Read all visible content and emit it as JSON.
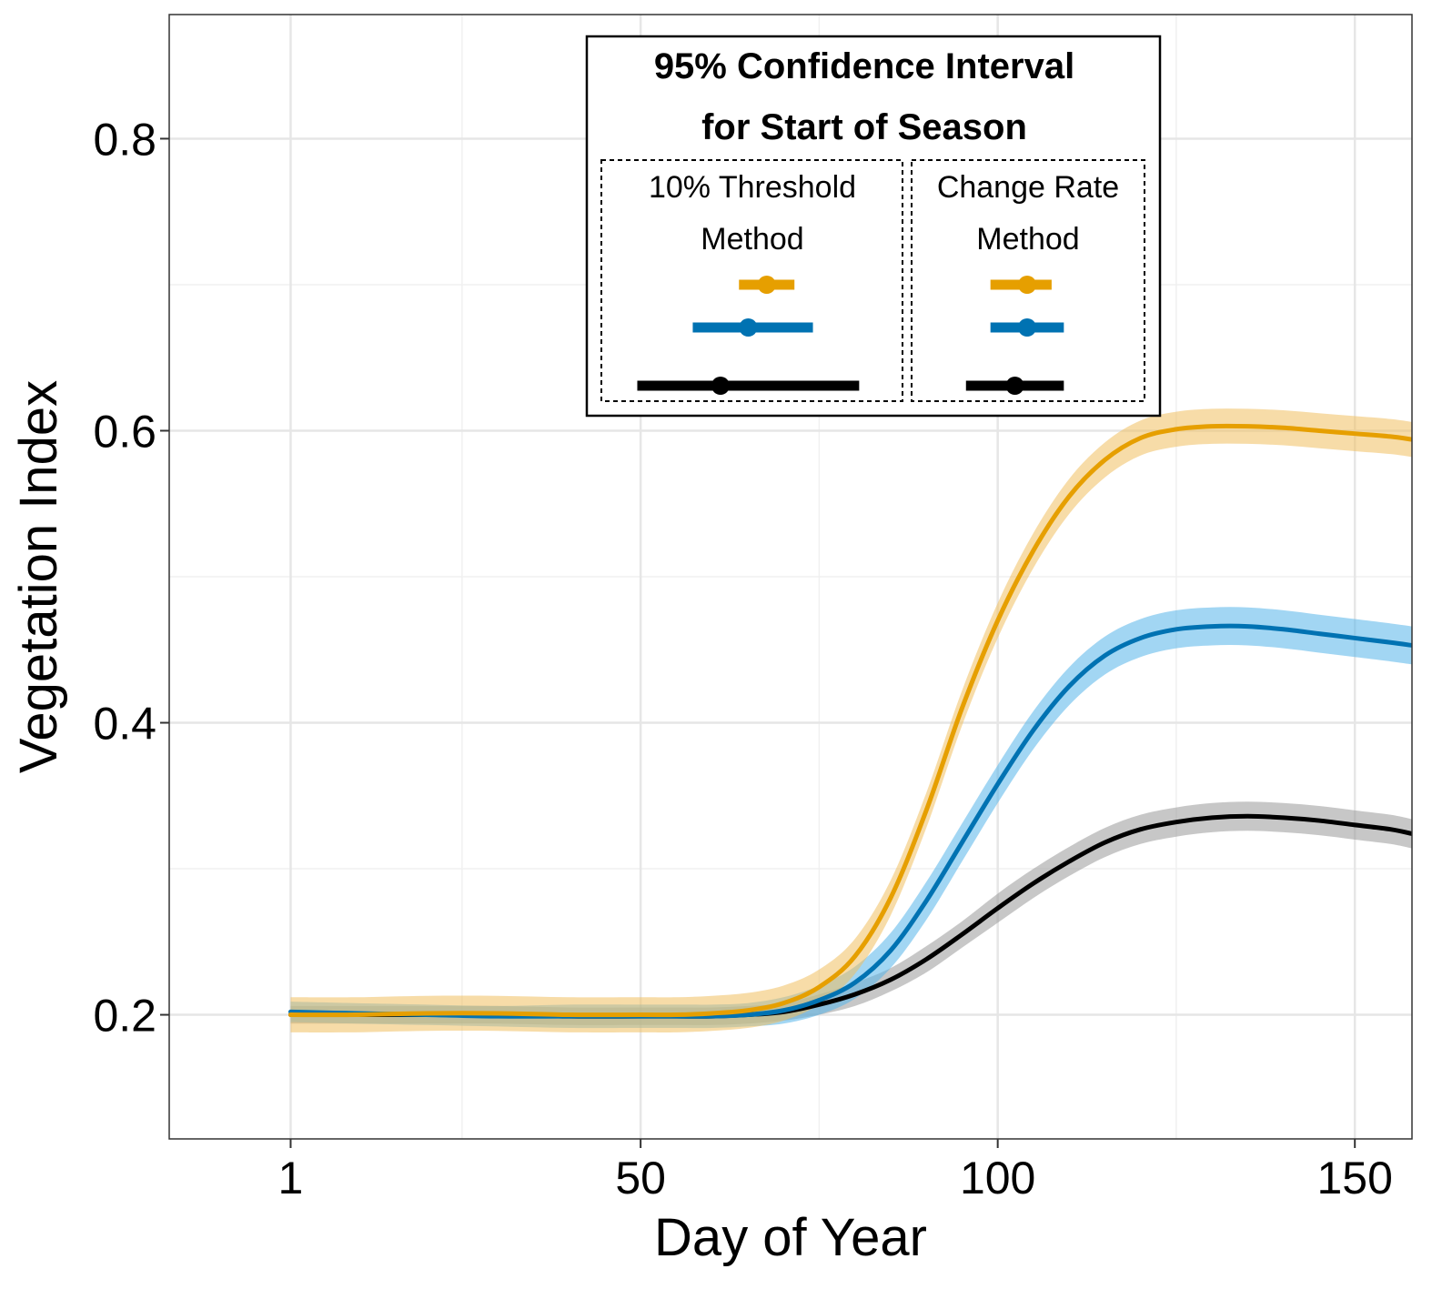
{
  "chart_data": {
    "type": "line",
    "xlabel": "Day of Year",
    "ylabel": "Vegetation Index",
    "xlim": [
      -16,
      158
    ],
    "ylim": [
      0.115,
      0.885
    ],
    "x_ticks": [
      1,
      50,
      100,
      150
    ],
    "x_minor": [
      25,
      75,
      125
    ],
    "y_ticks": [
      0.2,
      0.4,
      0.6,
      0.8
    ],
    "y_tick_labels": [
      "0.2",
      "0.4",
      "0.6",
      "0.8"
    ],
    "y_minor": [
      0.3,
      0.5,
      0.7
    ],
    "grid": true,
    "series": [
      {
        "color": "#000000",
        "band_color": "#999999",
        "x": [
          1,
          10,
          20,
          30,
          40,
          50,
          55,
          60,
          65,
          70,
          75,
          80,
          85,
          90,
          95,
          100,
          105,
          110,
          115,
          120,
          125,
          130,
          135,
          140,
          145,
          150,
          155,
          158
        ],
        "y": [
          0.2,
          0.2,
          0.2,
          0.2,
          0.199,
          0.199,
          0.199,
          0.199,
          0.2,
          0.202,
          0.207,
          0.214,
          0.224,
          0.238,
          0.255,
          0.273,
          0.29,
          0.305,
          0.318,
          0.327,
          0.332,
          0.335,
          0.336,
          0.335,
          0.333,
          0.33,
          0.327,
          0.324
        ],
        "band_halfwidth": [
          0.006,
          0.006,
          0.006,
          0.006,
          0.006,
          0.006,
          0.006,
          0.006,
          0.006,
          0.006,
          0.007,
          0.008,
          0.008,
          0.009,
          0.009,
          0.01,
          0.01,
          0.01,
          0.01,
          0.01,
          0.01,
          0.01,
          0.01,
          0.01,
          0.01,
          0.01,
          0.01,
          0.01
        ]
      },
      {
        "color": "#0072B2",
        "band_color": "#56B4E9",
        "x": [
          1,
          10,
          20,
          30,
          40,
          50,
          55,
          60,
          65,
          70,
          75,
          80,
          85,
          90,
          95,
          100,
          105,
          110,
          115,
          120,
          125,
          130,
          135,
          140,
          145,
          150,
          155,
          158
        ],
        "y": [
          0.202,
          0.201,
          0.2,
          0.199,
          0.199,
          0.199,
          0.199,
          0.199,
          0.2,
          0.203,
          0.21,
          0.222,
          0.244,
          0.278,
          0.318,
          0.358,
          0.395,
          0.425,
          0.446,
          0.458,
          0.464,
          0.466,
          0.466,
          0.464,
          0.461,
          0.458,
          0.455,
          0.453
        ],
        "band_halfwidth": [
          0.007,
          0.007,
          0.007,
          0.007,
          0.008,
          0.008,
          0.008,
          0.008,
          0.008,
          0.009,
          0.01,
          0.011,
          0.012,
          0.013,
          0.013,
          0.013,
          0.013,
          0.013,
          0.013,
          0.013,
          0.013,
          0.013,
          0.013,
          0.013,
          0.013,
          0.013,
          0.013,
          0.013
        ]
      },
      {
        "color": "#E69F00",
        "band_color": "#F0C060",
        "x": [
          1,
          10,
          20,
          30,
          40,
          50,
          55,
          60,
          65,
          70,
          75,
          80,
          85,
          90,
          95,
          100,
          105,
          110,
          115,
          120,
          125,
          130,
          135,
          140,
          145,
          150,
          155,
          158
        ],
        "y": [
          0.2,
          0.2,
          0.201,
          0.201,
          0.2,
          0.2,
          0.2,
          0.201,
          0.203,
          0.208,
          0.219,
          0.24,
          0.28,
          0.34,
          0.41,
          0.47,
          0.518,
          0.555,
          0.58,
          0.595,
          0.601,
          0.603,
          0.603,
          0.602,
          0.6,
          0.598,
          0.596,
          0.594
        ]
      }
    ],
    "legend": {
      "title_lines": [
        "95% Confidence Interval",
        "for Start of Season"
      ],
      "panels": [
        {
          "title_lines": [
            "10% Threshold",
            "Method"
          ],
          "intervals": [
            {
              "color": "#E69F00",
              "center": 78,
              "low": 75,
              "high": 81
            },
            {
              "color": "#0072B2",
              "center": 76,
              "low": 70,
              "high": 83
            },
            {
              "color": "#000000",
              "center": 73,
              "low": 64,
              "high": 88
            }
          ]
        },
        {
          "title_lines": [
            "Change Rate",
            "Method"
          ],
          "intervals": [
            {
              "color": "#E69F00",
              "center": 75,
              "low": 72,
              "high": 77
            },
            {
              "color": "#0072B2",
              "center": 75,
              "low": 72,
              "high": 78
            },
            {
              "color": "#000000",
              "center": 74,
              "low": 70,
              "high": 78
            }
          ]
        }
      ]
    }
  }
}
